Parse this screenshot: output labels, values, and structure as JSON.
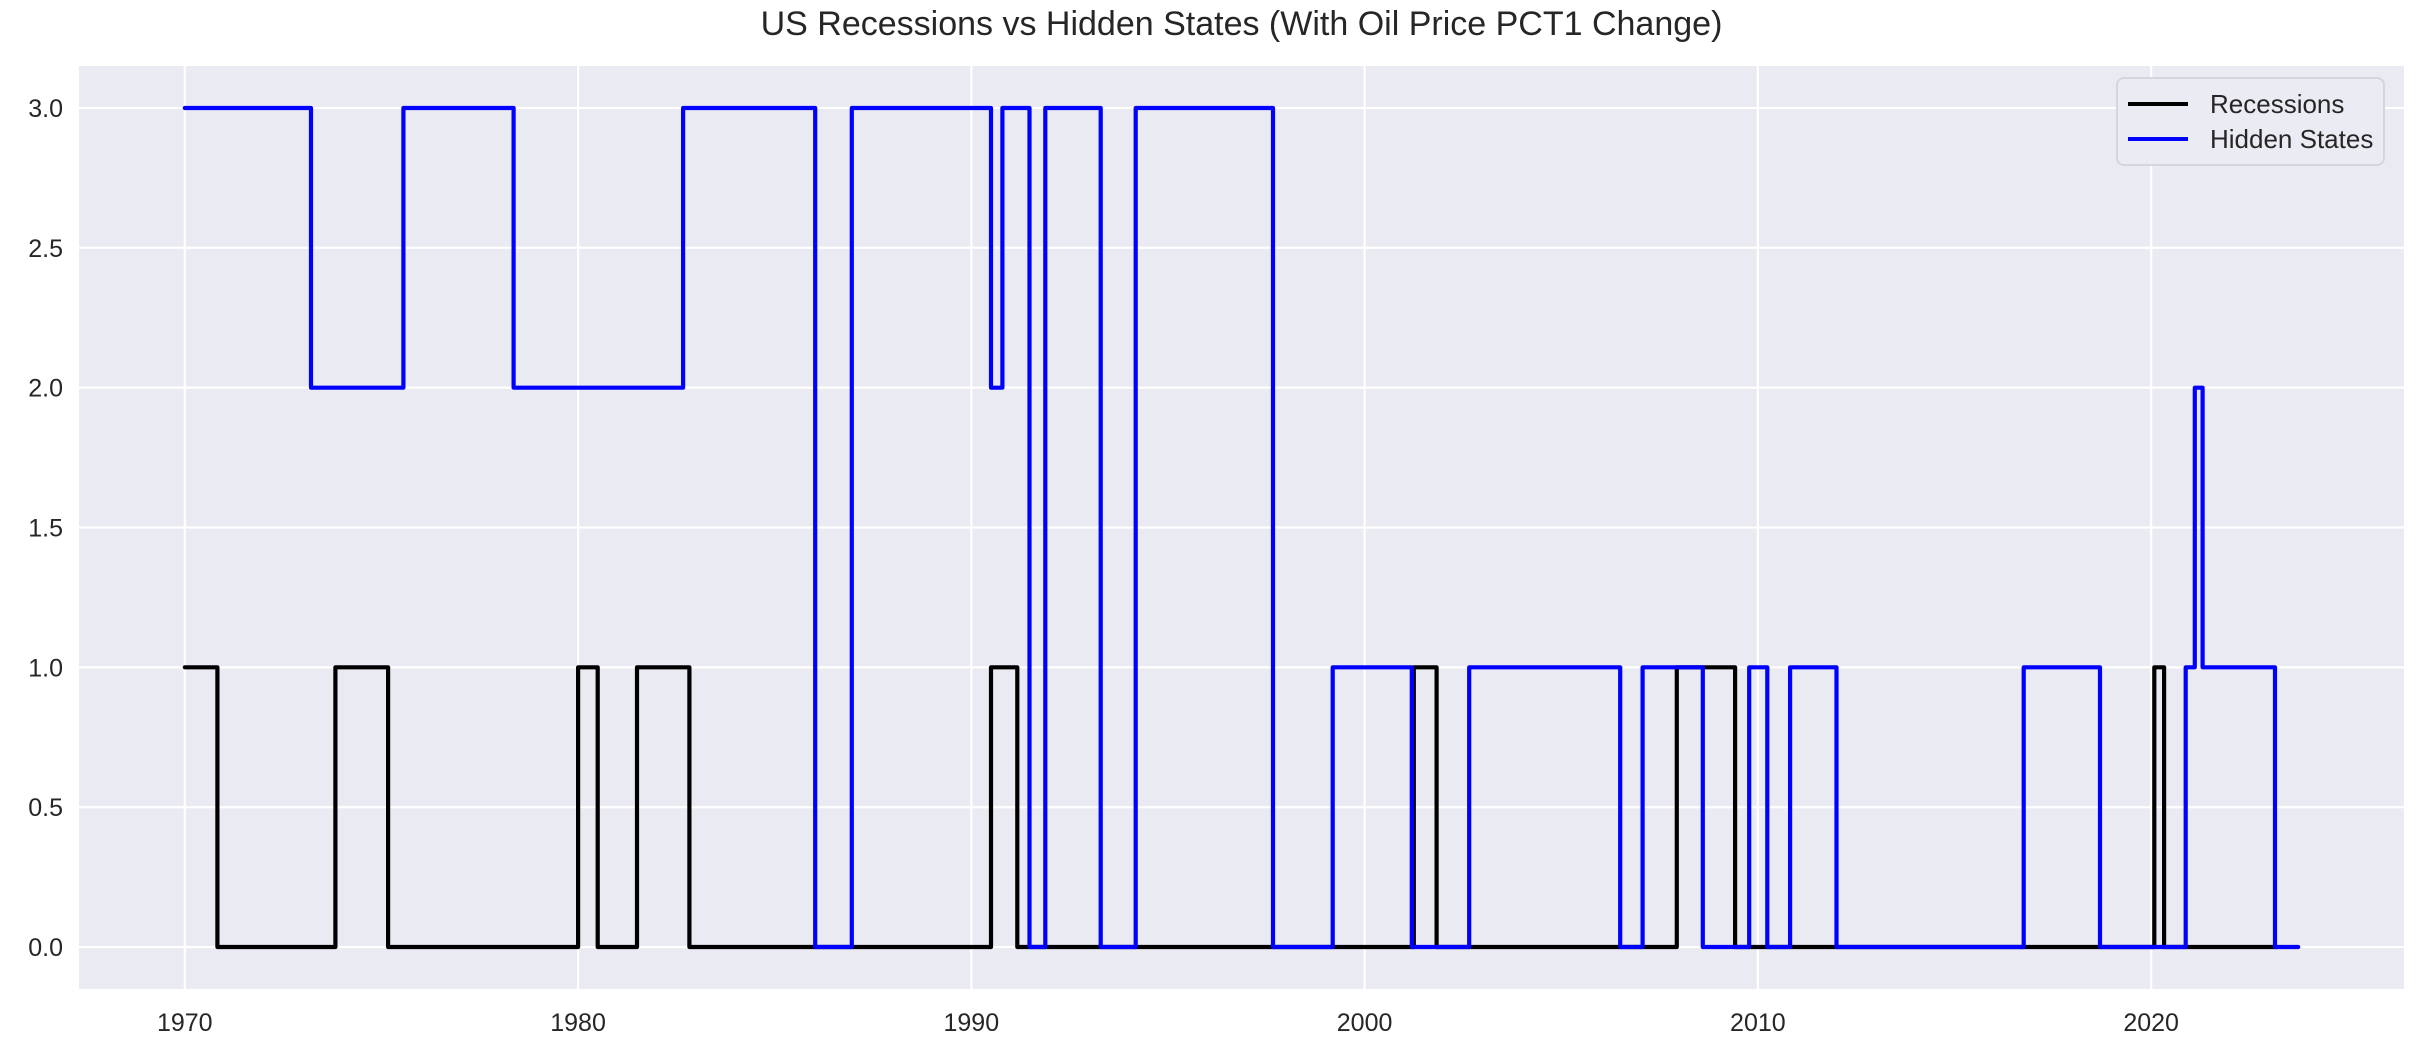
{
  "chart_data": {
    "type": "line",
    "step": true,
    "title": "US Recessions vs Hidden States (With Oil Price PCT1 Change)",
    "xlabel": "",
    "ylabel": "",
    "xlim": [
      1967.31,
      2026.43
    ],
    "ylim": [
      -0.15,
      3.15
    ],
    "grid": true,
    "legend_position": "upper right",
    "x_ticks": [
      1970,
      1980,
      1990,
      2000,
      2010,
      2020
    ],
    "x_tick_labels": [
      "1970",
      "1980",
      "1990",
      "2000",
      "2010",
      "2020"
    ],
    "y_ticks": [
      0.0,
      0.5,
      1.0,
      1.5,
      2.0,
      2.5,
      3.0
    ],
    "y_tick_labels": [
      "0.0",
      "0.5",
      "1.0",
      "1.5",
      "2.0",
      "2.5",
      "3.0"
    ],
    "colors": {
      "background": "#FFFFFF",
      "plot_background": "#EAEAF2",
      "grid": "#FFFFFF",
      "text": "#262626",
      "legend_background": "#EBEBF3",
      "legend_border": "#D5D5DD"
    },
    "series": [
      {
        "name": "Recessions",
        "color": "#000000",
        "line_width": 4.2,
        "steps": [
          [
            1970.0,
            1970.83,
            1
          ],
          [
            1970.83,
            1973.83,
            0
          ],
          [
            1973.83,
            1975.17,
            1
          ],
          [
            1975.17,
            1980.0,
            0
          ],
          [
            1980.0,
            1980.5,
            1
          ],
          [
            1980.5,
            1981.5,
            0
          ],
          [
            1981.5,
            1982.83,
            1
          ],
          [
            1982.83,
            1990.5,
            0
          ],
          [
            1990.5,
            1991.17,
            1
          ],
          [
            1991.17,
            2001.25,
            0
          ],
          [
            2001.25,
            2001.83,
            1
          ],
          [
            2001.83,
            2007.94,
            0
          ],
          [
            2007.94,
            2009.42,
            1
          ],
          [
            2009.42,
            2020.08,
            0
          ],
          [
            2020.08,
            2020.33,
            1
          ],
          [
            2020.33,
            2023.2,
            0
          ]
        ]
      },
      {
        "name": "Hidden States",
        "color": "#0000FF",
        "line_width": 4.2,
        "steps": [
          [
            1970.0,
            1973.21,
            3
          ],
          [
            1973.21,
            1975.56,
            2
          ],
          [
            1975.56,
            1978.36,
            3
          ],
          [
            1978.36,
            1982.67,
            2
          ],
          [
            1982.67,
            1986.03,
            3
          ],
          [
            1986.03,
            1986.96,
            0
          ],
          [
            1986.96,
            1990.5,
            3
          ],
          [
            1990.5,
            1990.79,
            2
          ],
          [
            1990.79,
            1991.48,
            3
          ],
          [
            1991.48,
            1991.88,
            0
          ],
          [
            1991.88,
            1993.29,
            3
          ],
          [
            1993.29,
            1994.18,
            0
          ],
          [
            1994.18,
            1997.67,
            3
          ],
          [
            1997.67,
            1999.19,
            0
          ],
          [
            1999.19,
            2001.2,
            1
          ],
          [
            2001.2,
            2002.66,
            0
          ],
          [
            2002.66,
            2006.5,
            1
          ],
          [
            2006.5,
            2007.07,
            0
          ],
          [
            2007.07,
            2008.6,
            1
          ],
          [
            2008.6,
            2009.78,
            0
          ],
          [
            2009.78,
            2010.24,
            1
          ],
          [
            2010.24,
            2010.82,
            0
          ],
          [
            2010.82,
            2012.0,
            1
          ],
          [
            2012.0,
            2016.76,
            0
          ],
          [
            2016.76,
            2018.7,
            1
          ],
          [
            2018.7,
            2020.88,
            0
          ],
          [
            2020.88,
            2021.11,
            1
          ],
          [
            2021.11,
            2021.31,
            2
          ],
          [
            2021.31,
            2023.15,
            1
          ],
          [
            2023.15,
            2023.74,
            0
          ]
        ]
      }
    ]
  }
}
